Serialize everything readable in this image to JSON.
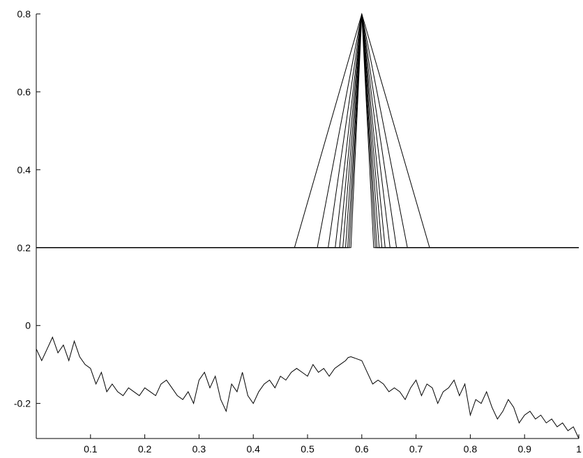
{
  "chart_data": {
    "type": "line",
    "title": "",
    "xlabel": "",
    "ylabel": "",
    "xlim": [
      0.0,
      1.0
    ],
    "ylim": [
      -0.29,
      0.8
    ],
    "grid": false,
    "legend": "none",
    "x_ticks": [
      {
        "value": 0.1,
        "label": "0.1"
      },
      {
        "value": 0.2,
        "label": "0.2"
      },
      {
        "value": 0.3,
        "label": "0.3"
      },
      {
        "value": 0.4,
        "label": "0.4"
      },
      {
        "value": 0.5,
        "label": "0.5"
      },
      {
        "value": 0.6,
        "label": "0.6"
      },
      {
        "value": 0.7,
        "label": "0.7"
      },
      {
        "value": 0.8,
        "label": "0.8"
      },
      {
        "value": 0.9,
        "label": "0.9"
      },
      {
        "value": 1.0,
        "label": "1"
      }
    ],
    "y_ticks": [
      {
        "value": -0.2,
        "label": "-0.2"
      },
      {
        "value": 0.0,
        "label": "0"
      },
      {
        "value": 0.2,
        "label": "0.2"
      },
      {
        "value": 0.4,
        "label": "0.4"
      },
      {
        "value": 0.6,
        "label": "0.6"
      },
      {
        "value": 0.8,
        "label": "0.8"
      }
    ],
    "series": [
      {
        "x": [
          0,
          0.476,
          0.6,
          0.725,
          1
        ],
        "y": [
          0.2,
          0.2,
          0.8,
          0.2,
          0.2
        ]
      },
      {
        "x": [
          0,
          0.518,
          0.6,
          0.684,
          1
        ],
        "y": [
          0.2,
          0.2,
          0.8,
          0.2,
          0.2
        ]
      },
      {
        "x": [
          0,
          0.538,
          0.6,
          0.664,
          1
        ],
        "y": [
          0.2,
          0.2,
          0.8,
          0.2,
          0.2
        ]
      },
      {
        "x": [
          0,
          0.551,
          0.6,
          0.652,
          1
        ],
        "y": [
          0.2,
          0.2,
          0.8,
          0.2,
          0.2
        ]
      },
      {
        "x": [
          0,
          0.559,
          0.6,
          0.643,
          1
        ],
        "y": [
          0.2,
          0.2,
          0.8,
          0.2,
          0.2
        ]
      },
      {
        "x": [
          0,
          0.565,
          0.6,
          0.637,
          1
        ],
        "y": [
          0.2,
          0.2,
          0.8,
          0.2,
          0.2
        ]
      },
      {
        "x": [
          0,
          0.57,
          0.6,
          0.632,
          1
        ],
        "y": [
          0.2,
          0.2,
          0.8,
          0.2,
          0.2
        ]
      },
      {
        "x": [
          0,
          0.574,
          0.6,
          0.628,
          1
        ],
        "y": [
          0.2,
          0.2,
          0.8,
          0.2,
          0.2
        ]
      },
      {
        "x": [
          0,
          0.577,
          0.6,
          0.625,
          1
        ],
        "y": [
          0.2,
          0.2,
          0.8,
          0.2,
          0.2
        ]
      },
      {
        "x": [
          0,
          0.58,
          0.6,
          0.622,
          1
        ],
        "y": [
          0.2,
          0.2,
          0.8,
          0.2,
          0.2
        ]
      },
      {
        "x": [
          0.0,
          0.01,
          0.02,
          0.03,
          0.04,
          0.05,
          0.06,
          0.07,
          0.08,
          0.09,
          0.1,
          0.11,
          0.12,
          0.13,
          0.14,
          0.15,
          0.16,
          0.17,
          0.18,
          0.19,
          0.2,
          0.21,
          0.22,
          0.23,
          0.24,
          0.25,
          0.26,
          0.27,
          0.28,
          0.29,
          0.3,
          0.31,
          0.32,
          0.33,
          0.34,
          0.35,
          0.36,
          0.37,
          0.38,
          0.39,
          0.4,
          0.41,
          0.42,
          0.43,
          0.44,
          0.45,
          0.46,
          0.47,
          0.48,
          0.49,
          0.5,
          0.51,
          0.52,
          0.53,
          0.54,
          0.55,
          0.56,
          0.57,
          0.575,
          0.58,
          0.59,
          0.6,
          0.61,
          0.62,
          0.63,
          0.64,
          0.65,
          0.66,
          0.67,
          0.68,
          0.69,
          0.7,
          0.71,
          0.72,
          0.73,
          0.74,
          0.75,
          0.76,
          0.77,
          0.78,
          0.79,
          0.8,
          0.81,
          0.82,
          0.83,
          0.84,
          0.85,
          0.86,
          0.87,
          0.88,
          0.89,
          0.9,
          0.91,
          0.92,
          0.93,
          0.94,
          0.95,
          0.96,
          0.97,
          0.98,
          0.99,
          1.0
        ],
        "y": [
          -0.06,
          -0.09,
          -0.06,
          -0.03,
          -0.07,
          -0.05,
          -0.09,
          -0.04,
          -0.08,
          -0.1,
          -0.11,
          -0.15,
          -0.12,
          -0.17,
          -0.15,
          -0.17,
          -0.18,
          -0.16,
          -0.17,
          -0.18,
          -0.16,
          -0.17,
          -0.18,
          -0.15,
          -0.14,
          -0.16,
          -0.18,
          -0.19,
          -0.17,
          -0.2,
          -0.14,
          -0.12,
          -0.16,
          -0.13,
          -0.19,
          -0.22,
          -0.15,
          -0.17,
          -0.12,
          -0.18,
          -0.2,
          -0.17,
          -0.15,
          -0.14,
          -0.16,
          -0.13,
          -0.14,
          -0.12,
          -0.11,
          -0.12,
          -0.13,
          -0.1,
          -0.12,
          -0.11,
          -0.13,
          -0.11,
          -0.1,
          -0.09,
          -0.082,
          -0.08,
          -0.085,
          -0.09,
          -0.12,
          -0.15,
          -0.14,
          -0.15,
          -0.17,
          -0.16,
          -0.17,
          -0.19,
          -0.16,
          -0.14,
          -0.18,
          -0.15,
          -0.16,
          -0.2,
          -0.17,
          -0.16,
          -0.14,
          -0.18,
          -0.15,
          -0.23,
          -0.19,
          -0.2,
          -0.17,
          -0.21,
          -0.24,
          -0.22,
          -0.19,
          -0.21,
          -0.25,
          -0.23,
          -0.22,
          -0.24,
          -0.23,
          -0.25,
          -0.24,
          -0.26,
          -0.25,
          -0.27,
          -0.26,
          -0.29
        ]
      }
    ]
  }
}
